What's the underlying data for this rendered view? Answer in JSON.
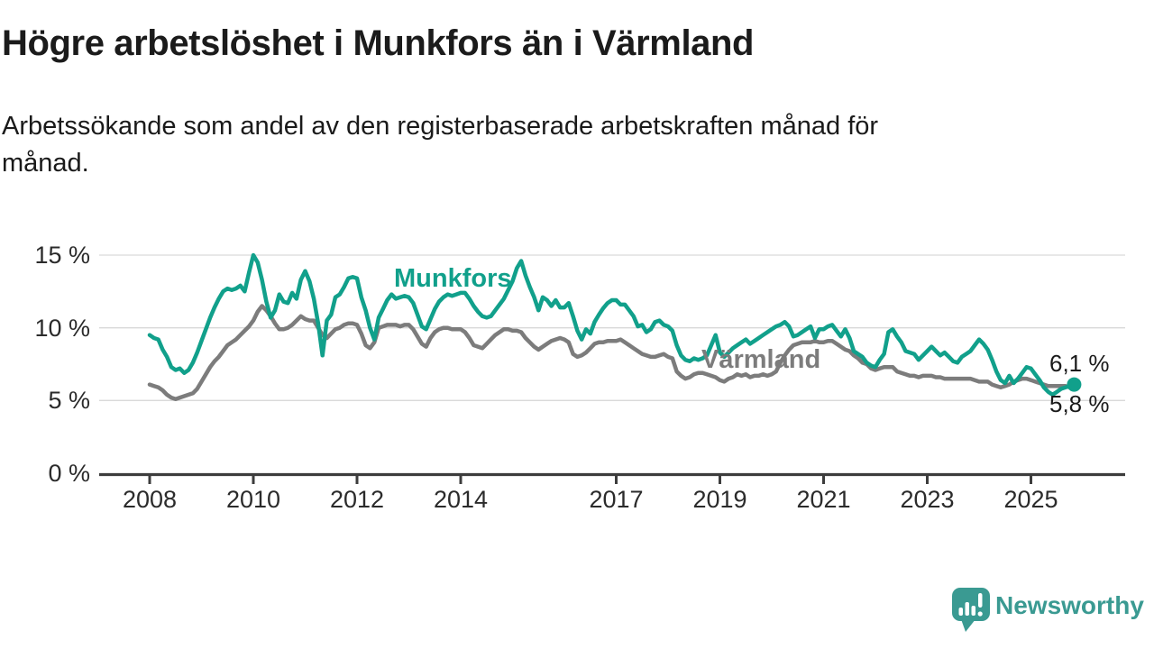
{
  "header": {
    "title": "Högre arbetslöshet i Munkfors än i Värmland",
    "subtitle": "Arbetssökande som andel av den registerbaserade arbetskraften månad för\nmånad."
  },
  "footer": {
    "brand": "Newsworthy",
    "brand_color": "#3a9a92",
    "logo_icon": "speech-bubble-bar-chart-icon"
  },
  "chart_data": {
    "type": "line",
    "title": "",
    "xlabel": "",
    "ylabel": "",
    "x_start": 2008,
    "x_step_months": 1,
    "x_end_label_month": "Nov 2025",
    "xlim": [
      2007.0,
      2026.8
    ],
    "ylim": [
      0,
      16.5
    ],
    "grid": "horizontal",
    "grid_color": "#d9d9d9",
    "axis_color": "#3d3d3d",
    "tick_text_color": "#2b2b2b",
    "y_ticks": [
      0,
      5,
      10,
      15
    ],
    "y_tick_labels": [
      "0 %",
      "5 %",
      "10 %",
      "15 %"
    ],
    "x_ticks": [
      2008,
      2010,
      2012,
      2014,
      2017,
      2019,
      2021,
      2023,
      2025
    ],
    "x_tick_labels": [
      "2008",
      "2010",
      "2012",
      "2014",
      "2017",
      "2019",
      "2021",
      "2023",
      "2025"
    ],
    "legend_position": "inline-labels-on-lines",
    "end_labels": [
      {
        "series": "Munkfors",
        "text": "6,1 %"
      },
      {
        "series": "Värmland",
        "text": "5,8 %"
      }
    ],
    "series": [
      {
        "name": "Munkfors",
        "color": "#11a08b",
        "line_width": 4.5,
        "end_dot": true,
        "values": [
          9.5,
          9.3,
          9.2,
          8.5,
          8.0,
          7.3,
          7.1,
          7.2,
          6.9,
          7.1,
          7.6,
          8.3,
          9.1,
          9.9,
          10.7,
          11.4,
          12.0,
          12.5,
          12.7,
          12.6,
          12.7,
          12.9,
          12.5,
          13.8,
          15.0,
          14.5,
          13.3,
          11.8,
          10.7,
          11.2,
          12.3,
          11.8,
          11.7,
          12.4,
          12.0,
          13.3,
          13.9,
          13.2,
          12.0,
          10.3,
          8.1,
          10.5,
          10.9,
          12.1,
          12.3,
          12.8,
          13.4,
          13.5,
          13.4,
          12.1,
          11.2,
          10.0,
          9.2,
          10.7,
          11.3,
          11.9,
          12.3,
          12.0,
          12.1,
          12.2,
          12.1,
          11.7,
          10.9,
          10.1,
          9.9,
          10.6,
          11.3,
          11.8,
          12.1,
          12.3,
          12.2,
          12.3,
          12.4,
          12.4,
          12.0,
          11.5,
          11.1,
          10.8,
          10.7,
          10.8,
          11.2,
          11.6,
          12.0,
          12.6,
          13.2,
          14.1,
          14.6,
          13.6,
          12.8,
          12.1,
          11.2,
          12.1,
          11.9,
          11.5,
          11.9,
          11.4,
          11.4,
          11.7,
          10.8,
          9.8,
          9.2,
          9.9,
          9.6,
          10.4,
          10.9,
          11.35,
          11.7,
          11.9,
          11.9,
          11.6,
          11.6,
          11.2,
          10.8,
          10.1,
          10.2,
          9.7,
          9.9,
          10.4,
          10.5,
          10.2,
          10.1,
          9.8,
          8.8,
          8.1,
          7.8,
          7.7,
          7.9,
          7.8,
          7.9,
          8.1,
          8.8,
          9.5,
          8.3,
          8.0,
          8.3,
          8.6,
          8.8,
          9.0,
          9.2,
          8.9,
          9.1,
          9.3,
          9.5,
          9.7,
          9.9,
          10.1,
          10.2,
          10.4,
          10.1,
          9.4,
          9.5,
          9.7,
          9.9,
          10.1,
          9.3,
          9.9,
          9.9,
          10.1,
          10.2,
          9.8,
          9.4,
          9.9,
          9.3,
          8.4,
          8.2,
          8.0,
          7.6,
          7.4,
          7.3,
          7.8,
          8.2,
          9.7,
          9.9,
          9.4,
          9.0,
          8.4,
          8.3,
          8.2,
          7.8,
          8.1,
          8.4,
          8.7,
          8.4,
          8.1,
          8.3,
          8.0,
          7.7,
          7.6,
          8.0,
          8.2,
          8.4,
          8.8,
          9.2,
          8.9,
          8.5,
          7.8,
          7.0,
          6.4,
          6.2,
          6.7,
          6.2,
          6.5,
          6.9,
          7.3,
          7.2,
          6.8,
          6.4,
          5.9,
          5.6,
          5.4,
          5.6,
          5.8,
          5.9,
          6.0,
          6.1
        ]
      },
      {
        "name": "Värmland",
        "color": "#7c7c7c",
        "line_width": 4.5,
        "end_dot": false,
        "values": [
          6.1,
          6.0,
          5.9,
          5.7,
          5.4,
          5.2,
          5.1,
          5.2,
          5.3,
          5.4,
          5.5,
          5.8,
          6.3,
          6.8,
          7.3,
          7.7,
          8.0,
          8.4,
          8.8,
          9.0,
          9.2,
          9.5,
          9.8,
          10.1,
          10.5,
          11.1,
          11.5,
          11.2,
          10.8,
          10.3,
          9.9,
          9.9,
          10.0,
          10.2,
          10.5,
          10.8,
          10.6,
          10.5,
          10.5,
          10.0,
          9.5,
          9.3,
          9.6,
          9.9,
          10.0,
          10.2,
          10.3,
          10.3,
          10.2,
          9.6,
          8.8,
          8.6,
          9.0,
          10.0,
          10.1,
          10.2,
          10.2,
          10.2,
          10.1,
          10.2,
          10.2,
          9.9,
          9.4,
          8.9,
          8.7,
          9.3,
          9.7,
          9.9,
          10.0,
          10.0,
          9.9,
          9.9,
          9.9,
          9.7,
          9.3,
          8.8,
          8.7,
          8.6,
          8.9,
          9.2,
          9.5,
          9.7,
          9.9,
          9.9,
          9.8,
          9.8,
          9.7,
          9.3,
          9.0,
          8.7,
          8.5,
          8.7,
          8.9,
          9.1,
          9.2,
          9.3,
          9.2,
          9.0,
          8.2,
          8.0,
          8.1,
          8.3,
          8.6,
          8.9,
          9.0,
          9.0,
          9.1,
          9.1,
          9.1,
          9.2,
          9.0,
          8.8,
          8.6,
          8.4,
          8.2,
          8.1,
          8.0,
          8.0,
          8.1,
          8.2,
          8.0,
          7.9,
          7.0,
          6.7,
          6.5,
          6.6,
          6.8,
          6.9,
          6.9,
          6.8,
          6.7,
          6.6,
          6.4,
          6.3,
          6.5,
          6.6,
          6.8,
          6.7,
          6.8,
          6.6,
          6.7,
          6.7,
          6.8,
          6.7,
          6.8,
          7.0,
          7.6,
          8.1,
          8.5,
          8.8,
          8.9,
          9.0,
          9.0,
          9.0,
          9.1,
          9.0,
          9.0,
          9.1,
          9.1,
          8.9,
          8.7,
          8.5,
          8.4,
          8.1,
          7.9,
          7.6,
          7.5,
          7.2,
          7.1,
          7.2,
          7.3,
          7.3,
          7.3,
          7.0,
          6.9,
          6.8,
          6.7,
          6.7,
          6.6,
          6.7,
          6.7,
          6.7,
          6.6,
          6.6,
          6.5,
          6.5,
          6.5,
          6.5,
          6.5,
          6.5,
          6.5,
          6.4,
          6.3,
          6.3,
          6.3,
          6.1,
          6.0,
          5.9,
          6.0,
          6.1,
          6.3,
          6.4,
          6.5,
          6.5,
          6.4,
          6.3,
          6.2,
          6.1,
          6.0,
          6.0,
          6.0,
          6.0,
          6.0,
          5.9,
          5.8
        ]
      }
    ]
  }
}
